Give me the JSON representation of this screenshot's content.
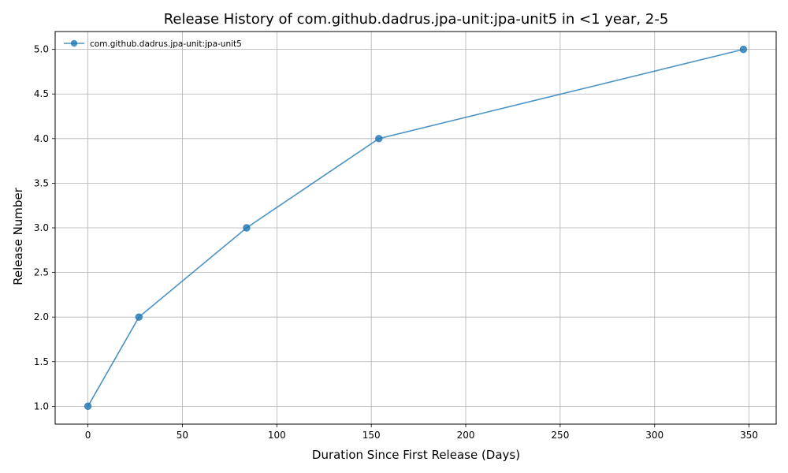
{
  "chart_data": {
    "type": "line",
    "title": "Release History of com.github.dadrus.jpa-unit:jpa-unit5 in <1 year, 2-5",
    "xlabel": "Duration Since First Release (Days)",
    "ylabel": "Release Number",
    "xlim": [
      -17.35,
      364.35
    ],
    "ylim": [
      0.8,
      5.2
    ],
    "xticks": [
      0,
      50,
      100,
      150,
      200,
      250,
      300,
      350
    ],
    "yticks": [
      1.0,
      1.5,
      2.0,
      2.5,
      3.0,
      3.5,
      4.0,
      4.5,
      5.0
    ],
    "xtick_labels": [
      "0",
      "50",
      "100",
      "150",
      "200",
      "250",
      "300",
      "350"
    ],
    "ytick_labels": [
      "1.0",
      "1.5",
      "2.0",
      "2.5",
      "3.0",
      "3.5",
      "4.0",
      "4.5",
      "5.0"
    ],
    "grid": true,
    "legend_position": "top-left",
    "series": [
      {
        "name": "com.github.dadrus.jpa-unit:jpa-unit5",
        "color": "#1f77b4",
        "marker": "circle",
        "x": [
          0,
          27,
          84,
          154,
          347
        ],
        "y": [
          1,
          2,
          3,
          4,
          5
        ]
      }
    ]
  }
}
